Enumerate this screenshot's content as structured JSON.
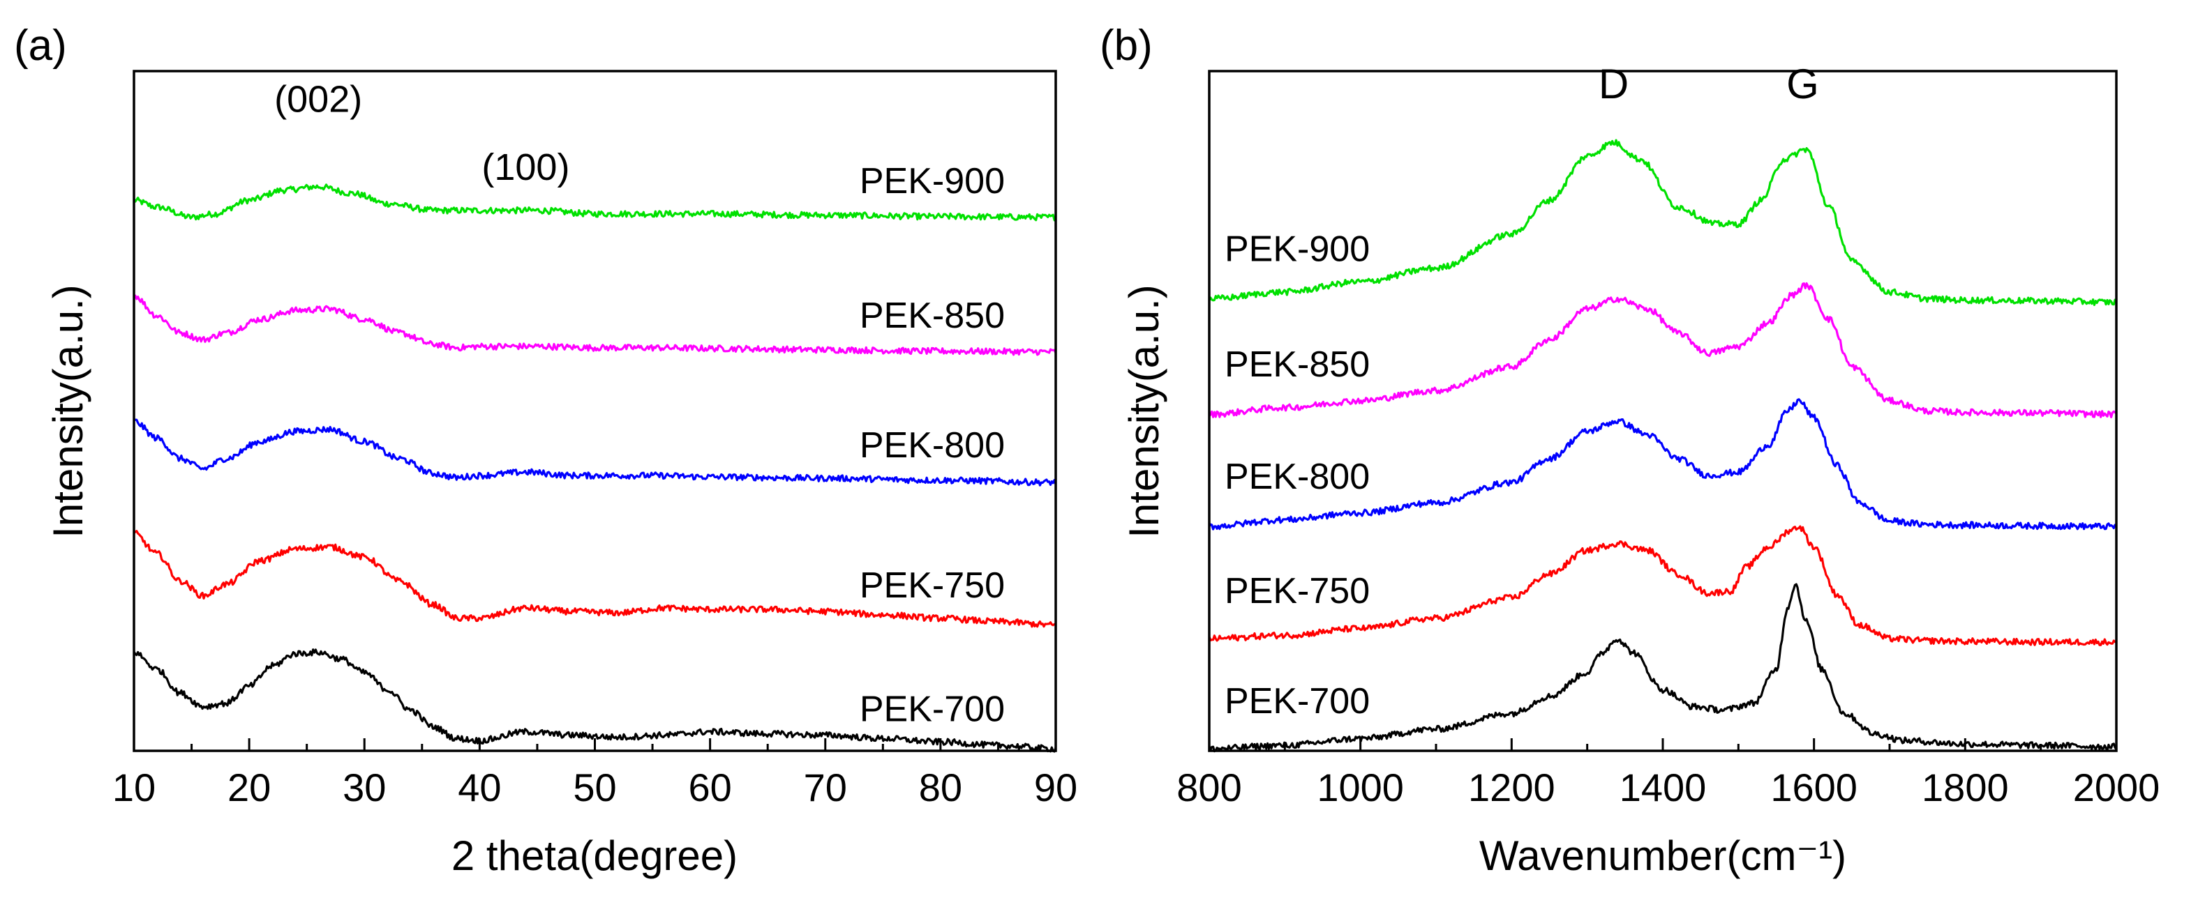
{
  "chart_data": [
    {
      "type": "line",
      "panel_label": "(a)",
      "title": "",
      "xlabel": "2 theta(degree)",
      "ylabel": "Intensity(a.u.)",
      "xlim": [
        10,
        90
      ],
      "x_ticks": [
        10,
        20,
        30,
        40,
        50,
        60,
        70,
        80,
        90
      ],
      "x_tick_labels": [
        "10",
        "20",
        "30",
        "40",
        "50",
        "60",
        "70",
        "80",
        "90"
      ],
      "ylim": [
        0,
        100
      ],
      "y_ticks_shown": false,
      "grid": false,
      "annotations": [
        {
          "text": "(002)",
          "x": 26,
          "y": 94
        },
        {
          "text": "(100)",
          "x": 44,
          "y": 84
        }
      ],
      "series": [
        {
          "name": "PEK-900",
          "color": "#00e000",
          "x": [
            10,
            12,
            15,
            17,
            20,
            23,
            26,
            29,
            32,
            36,
            40,
            45,
            50,
            55,
            60,
            70,
            80,
            90
          ],
          "y": [
            81,
            80,
            78.5,
            79,
            81,
            82.5,
            83,
            82,
            80.5,
            79.5,
            79.5,
            79.5,
            79,
            79,
            79,
            78.8,
            78.6,
            78.5
          ]
        },
        {
          "name": "PEK-850",
          "color": "#ff00ff",
          "x": [
            10,
            12,
            14,
            16,
            18,
            21,
            24,
            27,
            30,
            33,
            36,
            38,
            40,
            45,
            50,
            55,
            60,
            70,
            80,
            90
          ],
          "y": [
            67,
            64,
            61.5,
            60.5,
            61.5,
            63.5,
            64.8,
            65,
            63.5,
            61.5,
            59.8,
            59.3,
            59.5,
            59.5,
            59.3,
            59.3,
            59.2,
            59,
            58.8,
            58.7
          ]
        },
        {
          "name": "PEK-800",
          "color": "#0000ff",
          "x": [
            10,
            12,
            14,
            16,
            18,
            21,
            24,
            27,
            30,
            33,
            36,
            38,
            40,
            44,
            48,
            55,
            60,
            70,
            80,
            90
          ],
          "y": [
            48.5,
            46,
            43,
            41.5,
            43,
            45.5,
            47,
            47.3,
            45.5,
            43,
            40.8,
            40.2,
            40.5,
            41,
            40.5,
            40.5,
            40.3,
            40.1,
            39.8,
            39.5
          ]
        },
        {
          "name": "PEK-750",
          "color": "#ff0000",
          "x": [
            10,
            12,
            14,
            16,
            18,
            21,
            24,
            27,
            30,
            33,
            36,
            38,
            40,
            44,
            48,
            52,
            56,
            60,
            65,
            70,
            75,
            80,
            85,
            90
          ],
          "y": [
            32,
            29,
            25,
            22.8,
            24.5,
            28,
            29.7,
            30,
            28.5,
            25,
            21.5,
            19.5,
            19.5,
            21,
            20.5,
            20.3,
            21,
            20.8,
            20.8,
            20.5,
            20,
            19.5,
            19,
            18.5
          ]
        },
        {
          "name": "PEK-700",
          "color": "#000000",
          "x": [
            10,
            12,
            14,
            16,
            18,
            20,
            22,
            24,
            26,
            28,
            30,
            32,
            34,
            36,
            38,
            40,
            44,
            48,
            52,
            56,
            60,
            65,
            70,
            75,
            80,
            85,
            90
          ],
          "y": [
            14.5,
            12,
            8.5,
            6.5,
            7,
            9.5,
            12.5,
            14.3,
            14.5,
            13.5,
            11.5,
            9,
            6,
            3.5,
            1.8,
            1.5,
            2.8,
            2.3,
            2,
            2.3,
            2.8,
            2.5,
            2.3,
            1.8,
            1.3,
            0.8,
            0.3
          ]
        }
      ]
    },
    {
      "type": "line",
      "panel_label": "(b)",
      "title": "",
      "xlabel": "Wavenumber(cm⁻¹)",
      "ylabel": "Intensity(a.u.)",
      "xlim": [
        800,
        2000
      ],
      "x_ticks": [
        800,
        1000,
        1200,
        1400,
        1600,
        1800,
        2000
      ],
      "x_tick_labels": [
        "800",
        "1000",
        "1200",
        "1400",
        "1600",
        "1800",
        "2000"
      ],
      "ylim": [
        0,
        100
      ],
      "y_ticks_shown": false,
      "grid": false,
      "annotations": [
        {
          "text": "D",
          "x": 1335,
          "y": 96
        },
        {
          "text": "G",
          "x": 1585,
          "y": 96
        }
      ],
      "series": [
        {
          "name": "PEK-900",
          "color": "#00e000",
          "x": [
            800,
            900,
            1000,
            1100,
            1200,
            1250,
            1300,
            1335,
            1370,
            1420,
            1470,
            1500,
            1530,
            1560,
            1590,
            1620,
            1650,
            1700,
            1750,
            1800,
            1900,
            2000
          ],
          "y": [
            66.5,
            67.5,
            69,
            71,
            76,
            81,
            87.5,
            89.5,
            87,
            80,
            77.5,
            77.5,
            81,
            87,
            88.5,
            80,
            72,
            67.5,
            66.5,
            66.3,
            66.2,
            66
          ]
        },
        {
          "name": "PEK-850",
          "color": "#ff00ff",
          "x": [
            800,
            900,
            1000,
            1100,
            1200,
            1250,
            1300,
            1340,
            1380,
            1420,
            1460,
            1500,
            1540,
            1570,
            1590,
            1620,
            1650,
            1700,
            1750,
            1800,
            1900,
            2000
          ],
          "y": [
            49.5,
            50.5,
            51.5,
            53,
            56.5,
            60.5,
            65,
            66.5,
            65,
            61.5,
            58.5,
            59.5,
            63,
            67,
            68.5,
            63.5,
            56.5,
            51.5,
            50,
            49.8,
            49.7,
            49.5
          ]
        },
        {
          "name": "PEK-800",
          "color": "#0000ff",
          "x": [
            800,
            900,
            1000,
            1100,
            1200,
            1250,
            1300,
            1340,
            1380,
            1420,
            1460,
            1500,
            1540,
            1565,
            1580,
            1600,
            1630,
            1660,
            1700,
            1750,
            1800,
            1900,
            2000
          ],
          "y": [
            33,
            34,
            35,
            36.5,
            39.5,
            43,
            47,
            48.5,
            46.5,
            43,
            40.5,
            41,
            45,
            50,
            51.5,
            49,
            42,
            36.5,
            33.8,
            33.3,
            33.2,
            33.1,
            33
          ]
        },
        {
          "name": "PEK-750",
          "color": "#ff0000",
          "x": [
            800,
            900,
            1000,
            1100,
            1200,
            1250,
            1300,
            1340,
            1380,
            1420,
            1460,
            1490,
            1510,
            1540,
            1570,
            1580,
            1600,
            1630,
            1660,
            1700,
            1750,
            1800,
            1900,
            2000
          ],
          "y": [
            16.5,
            17,
            18,
            19.5,
            22.5,
            26,
            29.5,
            30.5,
            29.5,
            26,
            23.2,
            23.5,
            27,
            30,
            32.5,
            33,
            30,
            23,
            18.5,
            16.5,
            16.2,
            16.1,
            16,
            16
          ]
        },
        {
          "name": "PEK-700",
          "color": "#000000",
          "x": [
            800,
            900,
            1000,
            1100,
            1200,
            1250,
            1300,
            1320,
            1340,
            1360,
            1400,
            1440,
            1480,
            1520,
            1550,
            1565,
            1575,
            1590,
            1610,
            1640,
            1680,
            1720,
            1800,
            1900,
            2000
          ],
          "y": [
            0.3,
            0.8,
            1.8,
            3.2,
            5.5,
            8,
            11.5,
            14.5,
            16.5,
            14.5,
            9,
            6.5,
            6,
            7,
            12,
            21,
            24.5,
            19,
            12,
            5.5,
            2.5,
            1.5,
            1,
            0.8,
            0.6
          ]
        }
      ]
    }
  ]
}
